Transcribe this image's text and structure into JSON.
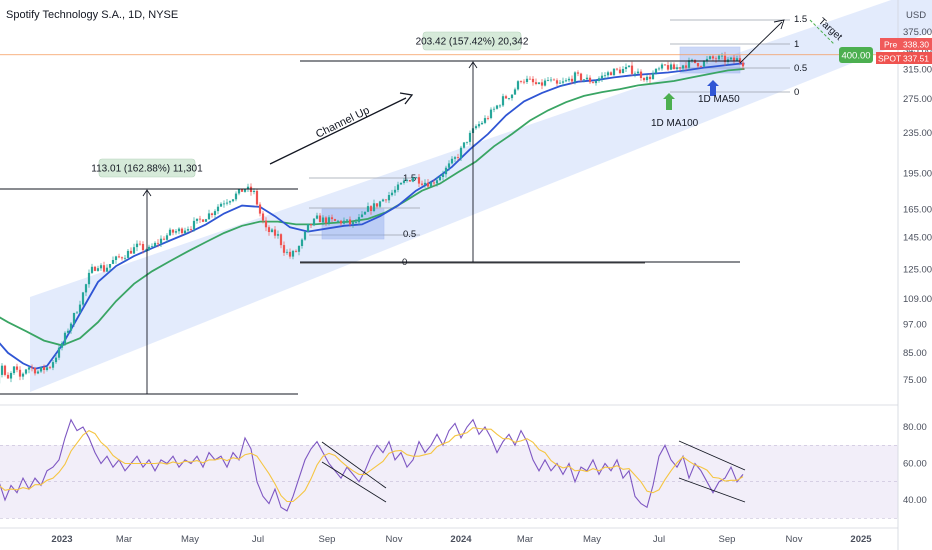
{
  "header": {
    "title": "Spotify Technology S.A., 1D, NYSE"
  },
  "chart_data": {
    "type": "candlestick",
    "symbol": "SPOT",
    "interval": "1D",
    "exchange": "NYSE",
    "price_unit": "USD",
    "y_scale": "log",
    "ylim": [
      66,
      410
    ],
    "price_ticks": [
      "375.00",
      "345.00",
      "315.00",
      "275.00",
      "235.00",
      "195.00",
      "165.00",
      "145.00",
      "125.00",
      "109.00",
      "97.00",
      "85.00",
      "75.00"
    ],
    "x_ticks": [
      "2023",
      "Mar",
      "May",
      "Jul",
      "Sep",
      "Nov",
      "2024",
      "Mar",
      "May",
      "Jul",
      "Sep",
      "Nov",
      "2025"
    ],
    "price_badges": {
      "target": "400.00",
      "pre_label": "Pre",
      "pre_value": "338.30",
      "spot_label": "SPOT",
      "spot_value": "337.51"
    },
    "moving_averages": [
      {
        "name": "1D MA50",
        "color": "#2f55d4"
      },
      {
        "name": "1D MA100",
        "color": "#3aa564"
      }
    ],
    "annotations": {
      "channel": "Channel Up",
      "target": "Target",
      "ma100": "1D MA100",
      "ma50": "1D MA50",
      "measure1": "113.01 (162.88%) 11,301",
      "measure2": "203.42 (157.42%) 20,342"
    },
    "fib_levels_1": [
      "1.5",
      "0.5",
      "0"
    ],
    "fib_levels_2": [
      "1.5",
      "1",
      "0.5",
      "0"
    ],
    "rsi": {
      "ylim": [
        30,
        95
      ],
      "ticks": [
        "80.00",
        "60.00",
        "40.00"
      ]
    },
    "price_path": [
      [
        -10,
        72
      ],
      [
        -4,
        80
      ],
      [
        -1,
        74
      ],
      [
        4,
        79
      ],
      [
        8,
        76
      ],
      [
        13,
        80
      ],
      [
        20,
        78
      ],
      [
        28,
        80
      ],
      [
        34,
        86
      ],
      [
        40,
        95
      ],
      [
        46,
        104
      ],
      [
        51,
        114
      ],
      [
        55,
        124
      ],
      [
        60,
        128
      ],
      [
        64,
        125
      ],
      [
        70,
        130
      ],
      [
        78,
        134
      ],
      [
        86,
        139
      ],
      [
        94,
        137
      ],
      [
        100,
        142
      ],
      [
        108,
        148
      ],
      [
        115,
        150
      ],
      [
        122,
        153
      ],
      [
        128,
        157
      ],
      [
        136,
        163
      ],
      [
        142,
        170
      ],
      [
        150,
        175
      ],
      [
        158,
        182
      ],
      [
        164,
        178
      ],
      [
        168,
        162
      ],
      [
        172,
        150
      ],
      [
        176,
        148
      ],
      [
        180,
        146
      ],
      [
        184,
        137
      ],
      [
        188,
        133
      ],
      [
        192,
        136
      ],
      [
        196,
        142
      ],
      [
        200,
        152
      ],
      [
        206,
        158
      ],
      [
        212,
        157
      ],
      [
        218,
        156
      ],
      [
        224,
        156
      ],
      [
        230,
        154
      ],
      [
        236,
        159
      ],
      [
        240,
        165
      ],
      [
        246,
        169
      ],
      [
        252,
        175
      ],
      [
        258,
        180
      ],
      [
        264,
        187
      ],
      [
        270,
        192
      ],
      [
        276,
        188
      ],
      [
        282,
        186
      ],
      [
        288,
        193
      ],
      [
        294,
        202
      ],
      [
        300,
        212
      ],
      [
        306,
        228
      ],
      [
        312,
        242
      ],
      [
        318,
        250
      ],
      [
        324,
        262
      ],
      [
        330,
        275
      ],
      [
        336,
        282
      ],
      [
        342,
        302
      ],
      [
        348,
        298
      ],
      [
        354,
        292
      ],
      [
        360,
        300
      ],
      [
        366,
        293
      ],
      [
        372,
        298
      ],
      [
        378,
        306
      ],
      [
        384,
        302
      ],
      [
        390,
        298
      ],
      [
        396,
        305
      ],
      [
        402,
        312
      ],
      [
        408,
        314
      ],
      [
        414,
        316
      ],
      [
        420,
        310
      ],
      [
        426,
        302
      ],
      [
        432,
        312
      ],
      [
        438,
        320
      ],
      [
        444,
        316
      ],
      [
        450,
        322
      ],
      [
        456,
        326
      ],
      [
        462,
        324
      ],
      [
        468,
        331
      ],
      [
        474,
        332
      ],
      [
        480,
        328
      ],
      [
        486,
        330
      ],
      [
        491,
        324
      ]
    ],
    "ma50_path": [
      [
        -10,
        92
      ],
      [
        0,
        85
      ],
      [
        10,
        81
      ],
      [
        18,
        79
      ],
      [
        26,
        80
      ],
      [
        36,
        88
      ],
      [
        48,
        102
      ],
      [
        60,
        118
      ],
      [
        72,
        127
      ],
      [
        84,
        133
      ],
      [
        96,
        138
      ],
      [
        108,
        143
      ],
      [
        120,
        148
      ],
      [
        132,
        154
      ],
      [
        144,
        162
      ],
      [
        156,
        168
      ],
      [
        168,
        167
      ],
      [
        178,
        160
      ],
      [
        188,
        152
      ],
      [
        200,
        149
      ],
      [
        212,
        151
      ],
      [
        224,
        153
      ],
      [
        236,
        154
      ],
      [
        248,
        160
      ],
      [
        260,
        168
      ],
      [
        272,
        180
      ],
      [
        284,
        189
      ],
      [
        296,
        201
      ],
      [
        308,
        218
      ],
      [
        320,
        234
      ],
      [
        332,
        255
      ],
      [
        344,
        272
      ],
      [
        356,
        283
      ],
      [
        368,
        292
      ],
      [
        380,
        298
      ],
      [
        392,
        300
      ],
      [
        404,
        304
      ],
      [
        416,
        307
      ],
      [
        428,
        309
      ],
      [
        440,
        311
      ],
      [
        452,
        314
      ],
      [
        464,
        318
      ],
      [
        476,
        321
      ],
      [
        488,
        324
      ],
      [
        491,
        324
      ]
    ],
    "ma100_path": [
      [
        -10,
        102
      ],
      [
        0,
        98
      ],
      [
        12,
        94
      ],
      [
        24,
        90
      ],
      [
        36,
        88
      ],
      [
        48,
        91
      ],
      [
        60,
        98
      ],
      [
        72,
        108
      ],
      [
        84,
        117
      ],
      [
        96,
        124
      ],
      [
        108,
        130
      ],
      [
        120,
        136
      ],
      [
        132,
        142
      ],
      [
        144,
        148
      ],
      [
        156,
        153
      ],
      [
        168,
        156
      ],
      [
        180,
        156
      ],
      [
        192,
        154
      ],
      [
        204,
        154
      ],
      [
        216,
        155
      ],
      [
        228,
        156
      ],
      [
        240,
        158
      ],
      [
        252,
        163
      ],
      [
        264,
        171
      ],
      [
        276,
        180
      ],
      [
        288,
        186
      ],
      [
        300,
        196
      ],
      [
        312,
        206
      ],
      [
        324,
        221
      ],
      [
        336,
        234
      ],
      [
        348,
        249
      ],
      [
        360,
        261
      ],
      [
        372,
        271
      ],
      [
        384,
        279
      ],
      [
        396,
        284
      ],
      [
        408,
        288
      ],
      [
        420,
        293
      ],
      [
        432,
        296
      ],
      [
        444,
        299
      ],
      [
        456,
        304
      ],
      [
        468,
        309
      ],
      [
        480,
        314
      ],
      [
        491,
        316
      ]
    ],
    "rsi_path": [
      [
        -10,
        46
      ],
      [
        -6,
        50
      ],
      [
        -2,
        40
      ],
      [
        2,
        48
      ],
      [
        6,
        44
      ],
      [
        10,
        52
      ],
      [
        14,
        46
      ],
      [
        18,
        52
      ],
      [
        22,
        48
      ],
      [
        26,
        56
      ],
      [
        30,
        58
      ],
      [
        34,
        62
      ],
      [
        38,
        74
      ],
      [
        42,
        84
      ],
      [
        46,
        78
      ],
      [
        50,
        80
      ],
      [
        54,
        74
      ],
      [
        58,
        66
      ],
      [
        62,
        60
      ],
      [
        66,
        64
      ],
      [
        70,
        58
      ],
      [
        74,
        62
      ],
      [
        78,
        56
      ],
      [
        82,
        60
      ],
      [
        86,
        64
      ],
      [
        90,
        58
      ],
      [
        94,
        62
      ],
      [
        98,
        56
      ],
      [
        102,
        62
      ],
      [
        106,
        60
      ],
      [
        110,
        64
      ],
      [
        114,
        58
      ],
      [
        118,
        62
      ],
      [
        122,
        60
      ],
      [
        126,
        64
      ],
      [
        130,
        58
      ],
      [
        134,
        66
      ],
      [
        138,
        62
      ],
      [
        142,
        64
      ],
      [
        146,
        58
      ],
      [
        150,
        66
      ],
      [
        154,
        62
      ],
      [
        158,
        74
      ],
      [
        162,
        68
      ],
      [
        166,
        50
      ],
      [
        170,
        42
      ],
      [
        174,
        38
      ],
      [
        178,
        46
      ],
      [
        182,
        36
      ],
      [
        186,
        34
      ],
      [
        190,
        42
      ],
      [
        194,
        52
      ],
      [
        198,
        62
      ],
      [
        202,
        68
      ],
      [
        206,
        72
      ],
      [
        210,
        66
      ],
      [
        214,
        60
      ],
      [
        218,
        56
      ],
      [
        222,
        52
      ],
      [
        226,
        58
      ],
      [
        230,
        54
      ],
      [
        234,
        50
      ],
      [
        238,
        56
      ],
      [
        242,
        64
      ],
      [
        246,
        70
      ],
      [
        250,
        66
      ],
      [
        254,
        72
      ],
      [
        258,
        62
      ],
      [
        262,
        66
      ],
      [
        266,
        58
      ],
      [
        270,
        62
      ],
      [
        274,
        72
      ],
      [
        278,
        66
      ],
      [
        282,
        70
      ],
      [
        286,
        76
      ],
      [
        290,
        70
      ],
      [
        294,
        78
      ],
      [
        298,
        82
      ],
      [
        302,
        74
      ],
      [
        306,
        80
      ],
      [
        310,
        84
      ],
      [
        314,
        76
      ],
      [
        318,
        80
      ],
      [
        322,
        74
      ],
      [
        326,
        66
      ],
      [
        330,
        72
      ],
      [
        334,
        76
      ],
      [
        338,
        70
      ],
      [
        342,
        78
      ],
      [
        346,
        72
      ],
      [
        350,
        62
      ],
      [
        354,
        56
      ],
      [
        358,
        62
      ],
      [
        362,
        56
      ],
      [
        366,
        60
      ],
      [
        370,
        54
      ],
      [
        374,
        60
      ],
      [
        378,
        50
      ],
      [
        382,
        58
      ],
      [
        386,
        56
      ],
      [
        390,
        62
      ],
      [
        394,
        54
      ],
      [
        398,
        60
      ],
      [
        402,
        56
      ],
      [
        406,
        62
      ],
      [
        410,
        52
      ],
      [
        414,
        56
      ],
      [
        418,
        42
      ],
      [
        422,
        38
      ],
      [
        426,
        36
      ],
      [
        430,
        48
      ],
      [
        434,
        64
      ],
      [
        438,
        70
      ],
      [
        442,
        62
      ],
      [
        446,
        58
      ],
      [
        450,
        64
      ],
      [
        454,
        52
      ],
      [
        458,
        60
      ],
      [
        462,
        56
      ],
      [
        466,
        50
      ],
      [
        470,
        44
      ],
      [
        474,
        50
      ],
      [
        478,
        52
      ],
      [
        482,
        58
      ],
      [
        486,
        50
      ],
      [
        490,
        54
      ]
    ]
  }
}
